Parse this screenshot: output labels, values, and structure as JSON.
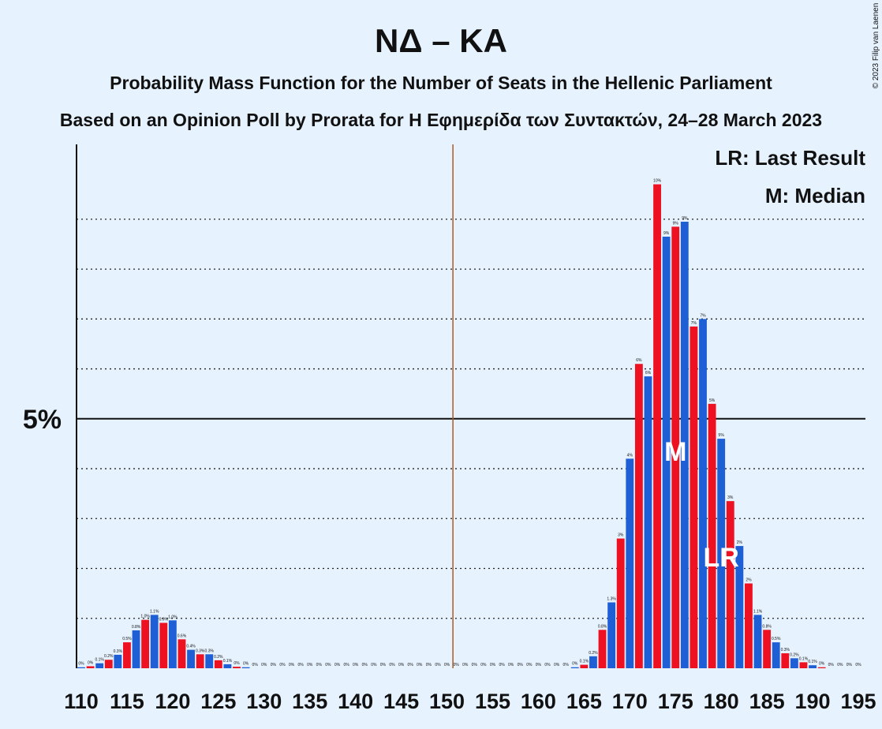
{
  "chart_data": {
    "type": "bar",
    "title": "ΝΔ – ΚΑ",
    "subtitle": "Probability Mass Function for the Number of Seats in the Hellenic Parliament",
    "caption": "Based on an Opinion Poll by Prorata for Η Εφημερίδα των Συντακτών, 24–28 March 2023",
    "copyright": "© 2023 Filip van Laenen",
    "x": [
      110,
      111,
      112,
      113,
      114,
      115,
      116,
      117,
      118,
      119,
      120,
      121,
      122,
      123,
      124,
      125,
      126,
      127,
      128,
      129,
      130,
      131,
      132,
      133,
      134,
      135,
      136,
      137,
      138,
      139,
      140,
      141,
      142,
      143,
      144,
      145,
      146,
      147,
      148,
      149,
      150,
      151,
      152,
      153,
      154,
      155,
      156,
      157,
      158,
      159,
      160,
      161,
      162,
      163,
      164,
      165,
      166,
      167,
      168,
      169,
      170,
      171,
      172,
      173,
      174,
      175,
      176,
      177,
      178,
      179,
      180,
      181,
      182,
      183,
      184,
      185,
      186,
      187,
      188,
      189,
      190,
      191,
      192,
      193,
      194,
      195
    ],
    "values": [
      0.02,
      0.04,
      0.1,
      0.17,
      0.27,
      0.52,
      0.76,
      0.97,
      1.07,
      0.91,
      0.96,
      0.58,
      0.37,
      0.28,
      0.28,
      0.16,
      0.08,
      0.03,
      0.02,
      0,
      0,
      0,
      0,
      0,
      0,
      0,
      0,
      0,
      0,
      0,
      0,
      0,
      0,
      0,
      0,
      0,
      0,
      0,
      0,
      0,
      0,
      0,
      0,
      0,
      0,
      0,
      0,
      0,
      0,
      0,
      0,
      0,
      0,
      0,
      0.02,
      0.07,
      0.24,
      0.77,
      1.32,
      2.6,
      4.2,
      6.1,
      5.85,
      9.7,
      8.65,
      8.85,
      8.95,
      6.85,
      7.0,
      5.3,
      4.6,
      3.35,
      2.45,
      1.7,
      1.07,
      0.77,
      0.52,
      0.3,
      0.2,
      0.12,
      0.06,
      0.02,
      0,
      0,
      0,
      0
    ],
    "value_labels": [
      "0%",
      "0%",
      "0.1%",
      "0.2%",
      "0.3%",
      "0.5%",
      "0.8%",
      "1.0%",
      "1.1%",
      "0.9%",
      "1.0%",
      "0.6%",
      "0.4%",
      "0.3%",
      "0.3%",
      "0.2%",
      "0.1%",
      "0%",
      "0%",
      "0%",
      "0%",
      "0%",
      "0%",
      "0%",
      "0%",
      "0%",
      "0%",
      "0%",
      "0%",
      "0%",
      "0%",
      "0%",
      "0%",
      "0%",
      "0%",
      "0%",
      "0%",
      "0%",
      "0%",
      "0%",
      "0%",
      "0%",
      "0%",
      "0%",
      "0%",
      "0%",
      "0%",
      "0%",
      "0%",
      "0%",
      "0%",
      "0%",
      "0%",
      "0%",
      "0%",
      "0.1%",
      "0.2%",
      "0.8%",
      "1.3%",
      "3%",
      "4%",
      "6%",
      "6%",
      "10%",
      "9%",
      "9%",
      "9%",
      "7%",
      "7%",
      "5%",
      "5%",
      "3%",
      "2%",
      "2%",
      "1.1%",
      "0.8%",
      "0.5%",
      "0.3%",
      "0.2%",
      "0.1%",
      "0.1%",
      "0%",
      "0%",
      "0%",
      "0%",
      "0%"
    ],
    "colors": [
      "#1f5fd6",
      "#ee1122"
    ],
    "xlim": [
      110,
      195
    ],
    "xticks": [
      110,
      115,
      120,
      125,
      130,
      135,
      140,
      145,
      150,
      155,
      160,
      165,
      170,
      175,
      180,
      185,
      190,
      195
    ],
    "ylim": [
      0,
      10.5
    ],
    "yticks": [
      {
        "value": 5,
        "label": "5%"
      }
    ],
    "grid_lines": [
      1,
      2,
      3,
      4,
      5,
      6,
      7,
      8,
      9
    ],
    "majority": 151,
    "markers": [
      {
        "label": "M",
        "seat": 175
      },
      {
        "label": "LR",
        "seat": 180
      }
    ],
    "legend": [
      "LR: Last Result",
      "M: Median"
    ]
  }
}
